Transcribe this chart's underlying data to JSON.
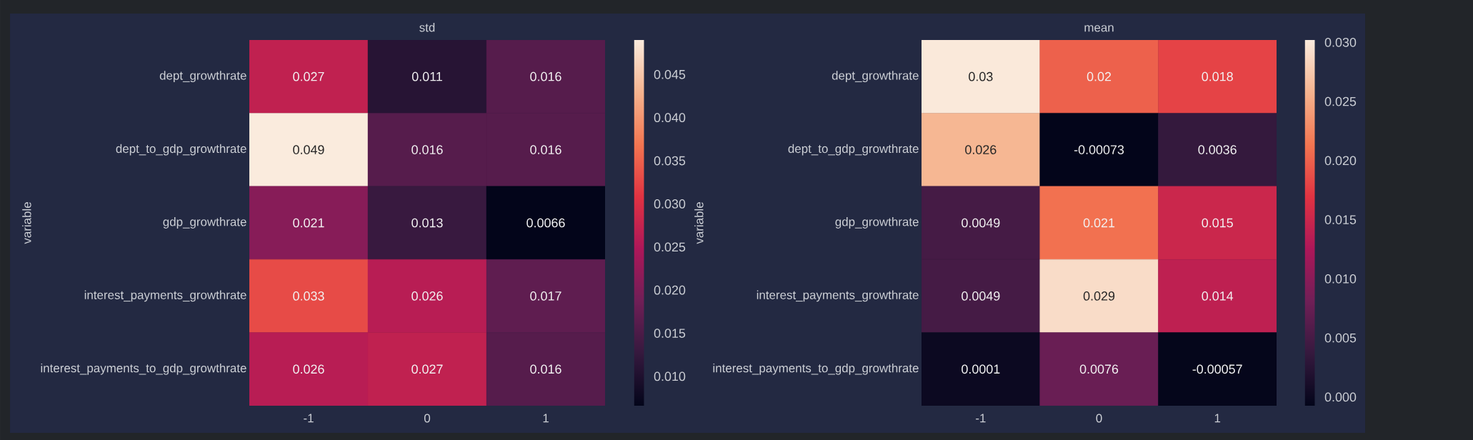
{
  "chart_data": [
    {
      "type": "heatmap",
      "title": "std",
      "ylabel": "variable",
      "categories": [
        "-1",
        "0",
        "1"
      ],
      "y_categories": [
        "dept_growthrate",
        "dept_to_gdp_growthrate",
        "gdp_growthrate",
        "interest_payments_growthrate",
        "interest_payments_to_gdp_growthrate"
      ],
      "cells": [
        [
          0.027,
          0.011,
          0.016
        ],
        [
          0.049,
          0.016,
          0.016
        ],
        [
          0.021,
          0.013,
          0.0066
        ],
        [
          0.033,
          0.026,
          0.017
        ],
        [
          0.026,
          0.027,
          0.016
        ]
      ],
      "clim": [
        0.0066,
        0.049
      ],
      "cticks": [
        {
          "value": 0.01,
          "label": "0.010"
        },
        0.015,
        {
          "value": 0.02,
          "label": "0.020"
        },
        0.025,
        {
          "value": 0.03,
          "label": "0.030"
        },
        0.035,
        {
          "value": 0.04,
          "label": "0.040"
        },
        0.045
      ],
      "data_labels": true
    },
    {
      "type": "heatmap",
      "title": "mean",
      "ylabel": "variable",
      "categories": [
        "-1",
        "0",
        "1"
      ],
      "y_categories": [
        "dept_growthrate",
        "dept_to_gdp_growthrate",
        "gdp_growthrate",
        "interest_payments_growthrate",
        "interest_payments_to_gdp_growthrate"
      ],
      "cells": [
        [
          0.03,
          0.02,
          0.018
        ],
        [
          0.026,
          -0.00073,
          0.0036
        ],
        [
          0.0049,
          0.021,
          0.015
        ],
        [
          0.0049,
          0.029,
          0.014
        ],
        [
          0.0001,
          0.0076,
          -0.00057
        ]
      ],
      "clim": [
        -0.00073,
        0.0302
      ],
      "cticks": [
        {
          "value": 0.0,
          "label": "0.000"
        },
        0.005,
        {
          "value": 0.01,
          "label": "0.010"
        },
        0.015,
        {
          "value": 0.02,
          "label": "0.020"
        },
        0.025,
        {
          "value": 0.03,
          "label": "0.030"
        }
      ],
      "data_labels": true
    }
  ]
}
